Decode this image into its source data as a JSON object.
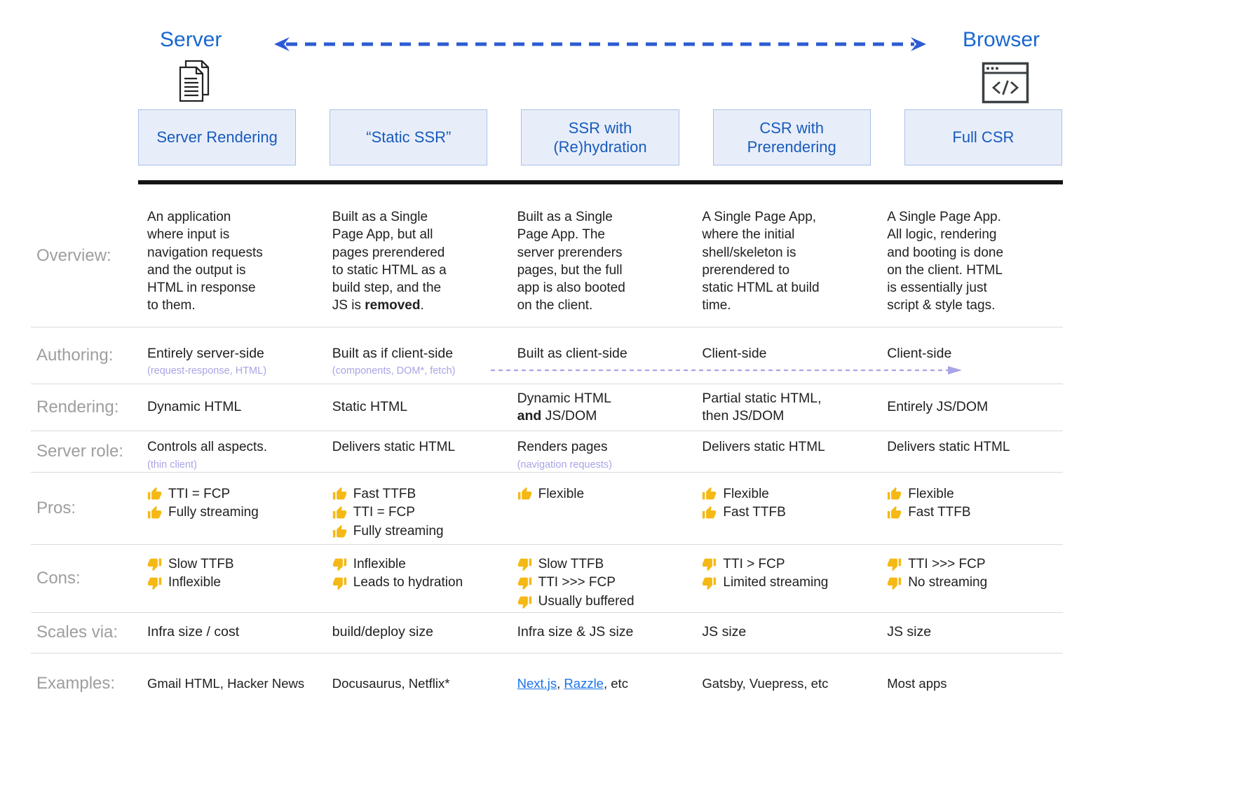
{
  "top": {
    "server_label": "Server",
    "browser_label": "Browser"
  },
  "icons": {
    "server": "documents-icon",
    "browser": "browser-code-icon",
    "pros": "thumb-up-icon",
    "cons": "thumb-down-icon",
    "spectrum": "double-dashed-arrow-icon",
    "authoring": "right-dashed-arrow-icon"
  },
  "colors": {
    "accent_blue": "#1967d2",
    "header_text": "#185abc",
    "header_bg": "#e8eef9",
    "header_border": "#a9c0e8",
    "arrow_blue": "#2d5bd3",
    "note_purple": "#a8a4e6",
    "label_gray": "#9e9e9e",
    "link_blue": "#1a73e8",
    "thumb_yellow": "#f5b915",
    "text_dark": "#212121"
  },
  "columns": [
    {
      "title": "Server Rendering"
    },
    {
      "title": "“Static SSR”"
    },
    {
      "title": "SSR with\n(Re)hydration"
    },
    {
      "title": "CSR with\nPrerendering"
    },
    {
      "title": "Full CSR"
    }
  ],
  "rows": [
    {
      "key": "overview",
      "label": "Overview:",
      "cells": [
        {
          "text": "An application\nwhere input is\nnavigation requests\nand the output is\nHTML in response\nto them."
        },
        {
          "segments": [
            {
              "t": "Built as a Single\nPage App, but all\npages prerendered\nto static HTML as a\nbuild step, and the\nJS is "
            },
            {
              "t": "removed",
              "bold": true
            },
            {
              "t": "."
            }
          ]
        },
        {
          "text": "Built as a Single\nPage App. The\nserver prerenders\npages, but the full\napp is also booted\non the client."
        },
        {
          "text": "A Single Page App,\nwhere the initial\nshell/skeleton is\nprerendered to\nstatic HTML at build\ntime."
        },
        {
          "text": "A Single Page App.\nAll logic, rendering\nand booting is done\non the client. HTML\nis essentially just\nscript & style tags."
        }
      ]
    },
    {
      "key": "authoring",
      "label": "Authoring:",
      "cells": [
        {
          "text": "Entirely server-side",
          "note": "(request-response, HTML)"
        },
        {
          "text": "Built as if client-side",
          "note": "(components, DOM*, fetch)"
        },
        {
          "text": "Built as client-side"
        },
        {
          "text": "Client-side"
        },
        {
          "text": "Client-side"
        }
      ]
    },
    {
      "key": "rendering",
      "label": "Rendering:",
      "cells": [
        {
          "text": "Dynamic HTML"
        },
        {
          "text": "Static HTML"
        },
        {
          "segments": [
            {
              "t": "Dynamic HTML\n"
            },
            {
              "t": "and",
              "bold": true
            },
            {
              "t": " JS/DOM"
            }
          ]
        },
        {
          "text": "Partial static HTML,\nthen JS/DOM"
        },
        {
          "text": "Entirely JS/DOM"
        }
      ]
    },
    {
      "key": "server-role",
      "label": "Server role:",
      "cells": [
        {
          "text": "Controls all aspects.",
          "note": "(thin client)"
        },
        {
          "text": "Delivers static HTML"
        },
        {
          "text": "Renders pages",
          "note": "(navigation requests)"
        },
        {
          "text": "Delivers static HTML"
        },
        {
          "text": "Delivers static HTML"
        }
      ]
    },
    {
      "key": "pros",
      "label": "Pros:",
      "cells": [
        {
          "list": {
            "icon": "thumb-up-icon",
            "items": [
              "TTI = FCP",
              "Fully streaming"
            ]
          }
        },
        {
          "list": {
            "icon": "thumb-up-icon",
            "items": [
              "Fast TTFB",
              "TTI = FCP",
              "Fully streaming"
            ]
          }
        },
        {
          "list": {
            "icon": "thumb-up-icon",
            "items": [
              "Flexible"
            ]
          }
        },
        {
          "list": {
            "icon": "thumb-up-icon",
            "items": [
              "Flexible",
              "Fast TTFB"
            ]
          }
        },
        {
          "list": {
            "icon": "thumb-up-icon",
            "items": [
              "Flexible",
              "Fast TTFB"
            ]
          }
        }
      ]
    },
    {
      "key": "cons",
      "label": "Cons:",
      "cells": [
        {
          "list": {
            "icon": "thumb-down-icon",
            "items": [
              "Slow TTFB",
              "Inflexible"
            ]
          }
        },
        {
          "list": {
            "icon": "thumb-down-icon",
            "items": [
              "Inflexible",
              "Leads to hydration"
            ]
          }
        },
        {
          "list": {
            "icon": "thumb-down-icon",
            "items": [
              "Slow TTFB",
              "TTI >>> FCP",
              "Usually buffered"
            ]
          }
        },
        {
          "list": {
            "icon": "thumb-down-icon",
            "items": [
              "TTI > FCP",
              "Limited streaming"
            ]
          }
        },
        {
          "list": {
            "icon": "thumb-down-icon",
            "items": [
              "TTI >>> FCP",
              "No streaming"
            ]
          }
        }
      ]
    },
    {
      "key": "scales-via",
      "label": "Scales via:",
      "cells": [
        {
          "text": "Infra size / cost"
        },
        {
          "text": "build/deploy size"
        },
        {
          "text": "Infra size & JS size"
        },
        {
          "text": "JS size"
        },
        {
          "text": "JS size"
        }
      ]
    },
    {
      "key": "examples",
      "label": "Examples:",
      "cells": [
        {
          "text": "Gmail HTML, Hacker News"
        },
        {
          "text": "Docusaurus, Netflix*"
        },
        {
          "segments": [
            {
              "t": "Next.js",
              "link": true
            },
            {
              "t": ", "
            },
            {
              "t": "Razzle",
              "link": true
            },
            {
              "t": ", etc"
            }
          ]
        },
        {
          "text": "Gatsby, Vuepress, etc"
        },
        {
          "text": "Most apps"
        }
      ]
    }
  ]
}
